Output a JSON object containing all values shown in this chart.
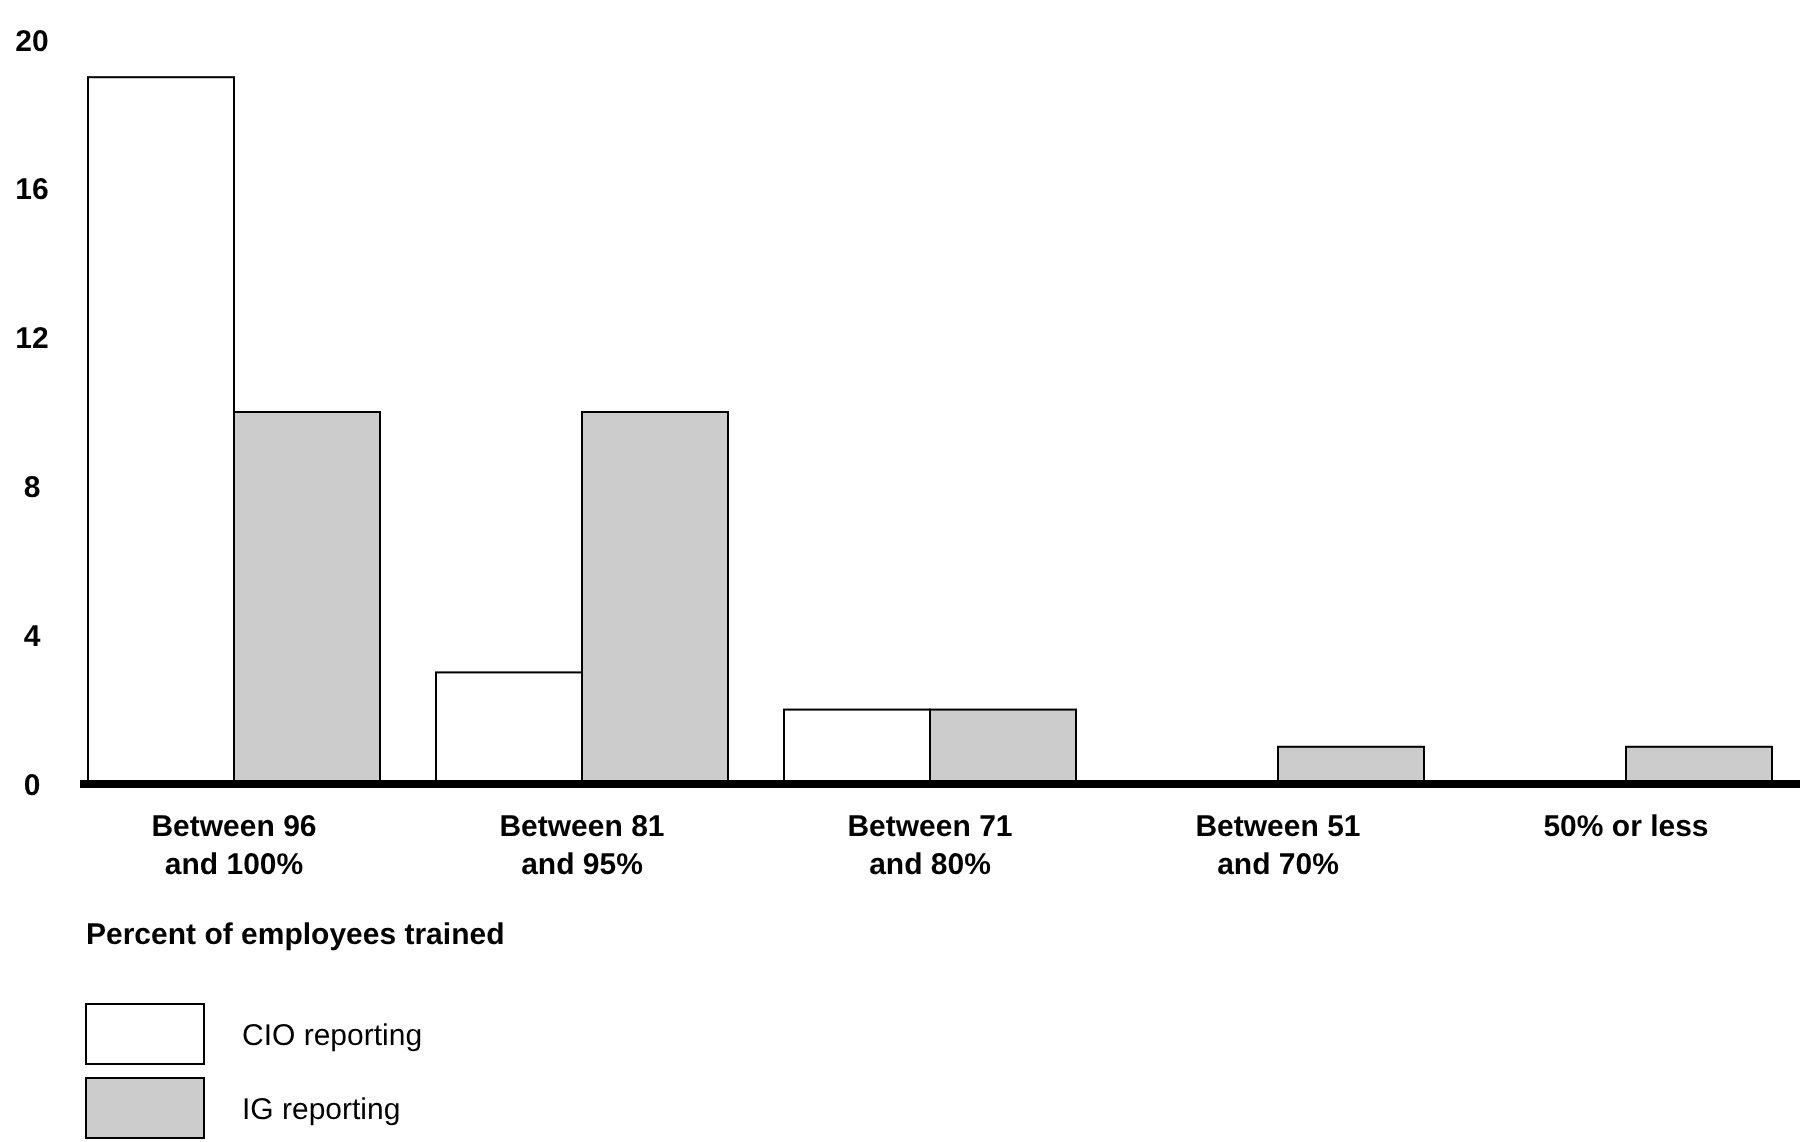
{
  "chart_data": {
    "type": "bar",
    "xlabel": "Percent of employees trained",
    "categories": [
      "Between 96 and 100%",
      "Between 81 and 95%",
      "Between 71 and 80%",
      "Between 51 and 70%",
      "50% or less"
    ],
    "series": [
      {
        "name": "CIO reporting",
        "color": "#ffffff",
        "values": [
          19,
          3,
          2,
          0,
          0
        ]
      },
      {
        "name": "IG reporting",
        "color": "#cccccc",
        "values": [
          10,
          10,
          2,
          1,
          1
        ]
      }
    ],
    "ylim": [
      0,
      20
    ],
    "yticks": [
      0,
      4,
      8,
      12,
      16,
      20
    ],
    "grid": false,
    "legend": "bottom left"
  }
}
